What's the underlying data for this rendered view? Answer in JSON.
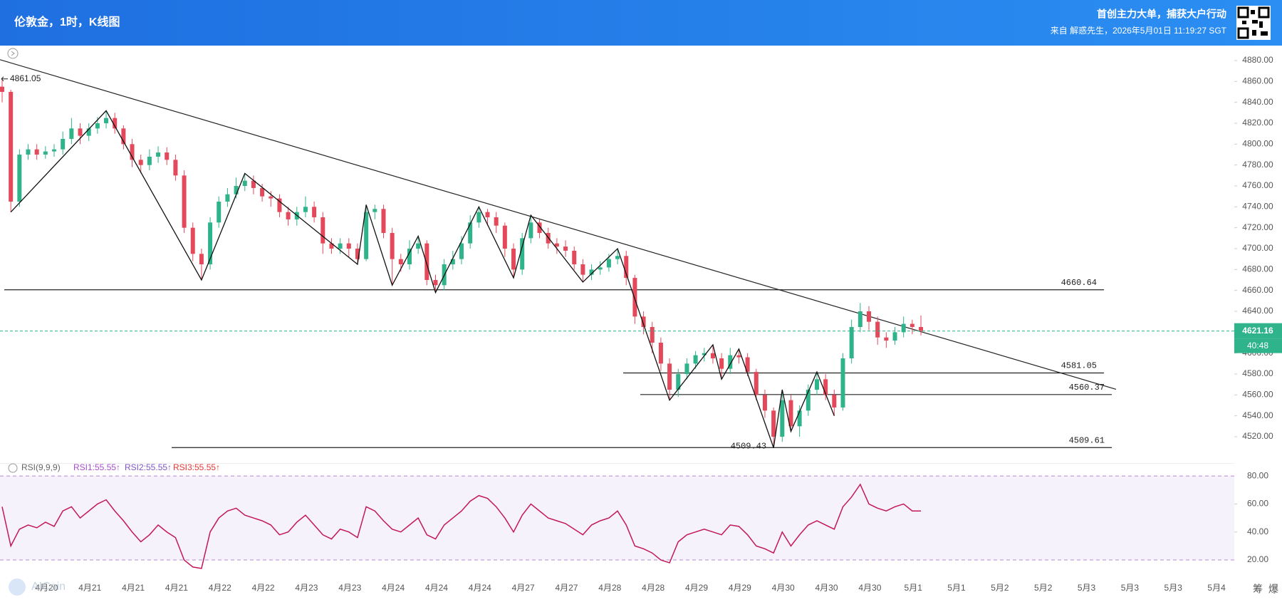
{
  "header": {
    "title": "伦敦金，1时，K线图",
    "slogan": "首创主力大单，捕获大户行动",
    "source": "来自 解惑先生，2026年5月01日 11:19:27 SGT"
  },
  "chart_data": [
    {
      "type": "candlestick",
      "open": [
        4855,
        4850,
        4745,
        4790,
        4795,
        4790,
        4793,
        4795,
        4805,
        4815,
        4808,
        4815,
        4820,
        4825,
        4815,
        4800,
        4785,
        4780,
        4788,
        4792,
        4785,
        4770,
        4720,
        4695,
        4685,
        4725,
        4745,
        4752,
        4760,
        4765,
        4758,
        4750,
        4748,
        4735,
        4728,
        4735,
        4740,
        4730,
        4705,
        4700,
        4705,
        4700,
        4690,
        4735,
        4738,
        4715,
        4690,
        4685,
        4700,
        4705,
        4670,
        4665,
        4685,
        4690,
        4705,
        4725,
        4735,
        4730,
        4722,
        4700,
        4680,
        4710,
        4725,
        4715,
        4705,
        4702,
        4698,
        4685,
        4675,
        4680,
        4682,
        4690,
        4693,
        4672,
        4635,
        4625,
        4610,
        4590,
        4565,
        4580,
        4590,
        4598,
        4600,
        4595,
        4585,
        4598,
        4596,
        4582,
        4560,
        4545,
        4520,
        4555,
        4530,
        4545,
        4565,
        4575,
        4560,
        4548,
        4595,
        4625,
        4640,
        4630,
        4615,
        4612,
        4620,
        4628,
        4625
      ],
      "high": [
        4861.05,
        4852,
        4795,
        4800,
        4800,
        4798,
        4800,
        4812,
        4825,
        4820,
        4820,
        4826,
        4832,
        4830,
        4818,
        4805,
        4790,
        4795,
        4798,
        4797,
        4790,
        4775,
        4725,
        4700,
        4730,
        4750,
        4758,
        4768,
        4772,
        4770,
        4762,
        4755,
        4752,
        4740,
        4740,
        4750,
        4745,
        4735,
        4710,
        4710,
        4710,
        4705,
        4742,
        4742,
        4742,
        4720,
        4695,
        4708,
        4712,
        4708,
        4675,
        4690,
        4698,
        4712,
        4732,
        4740,
        4738,
        4735,
        4725,
        4705,
        4715,
        4732,
        4728,
        4720,
        4710,
        4708,
        4702,
        4690,
        4685,
        4688,
        4695,
        4700,
        4698,
        4675,
        4640,
        4630,
        4615,
        4595,
        4585,
        4595,
        4602,
        4605,
        4608,
        4600,
        4605,
        4604,
        4600,
        4585,
        4565,
        4548,
        4565,
        4560,
        4550,
        4570,
        4582,
        4580,
        4565,
        4600,
        4632,
        4648,
        4645,
        4635,
        4620,
        4625,
        4635,
        4632,
        4636
      ],
      "low": [
        4840,
        4735,
        4740,
        4785,
        4785,
        4786,
        4788,
        4790,
        4800,
        4800,
        4803,
        4810,
        4815,
        4810,
        4795,
        4778,
        4772,
        4775,
        4782,
        4780,
        4765,
        4715,
        4688,
        4670,
        4680,
        4720,
        4740,
        4748,
        4755,
        4752,
        4745,
        4740,
        4730,
        4722,
        4722,
        4730,
        4725,
        4695,
        4695,
        4695,
        4692,
        4685,
        4688,
        4728,
        4710,
        4665,
        4678,
        4680,
        4695,
        4665,
        4658,
        4660,
        4680,
        4685,
        4700,
        4720,
        4722,
        4715,
        4692,
        4672,
        4675,
        4705,
        4710,
        4700,
        4695,
        4692,
        4680,
        4668,
        4670,
        4675,
        4678,
        4685,
        4665,
        4628,
        4618,
        4600,
        4583,
        4555,
        4558,
        4575,
        4585,
        4592,
        4590,
        4575,
        4580,
        4590,
        4578,
        4555,
        4538,
        4509.43,
        4515,
        4525,
        4520,
        4540,
        4560,
        4555,
        4540,
        4545,
        4590,
        4620,
        4622,
        4608,
        4605,
        4608,
        4615,
        4618,
        4617
      ],
      "close": [
        4850,
        4745,
        4790,
        4795,
        4790,
        4793,
        4795,
        4805,
        4815,
        4808,
        4815,
        4820,
        4825,
        4815,
        4800,
        4785,
        4780,
        4788,
        4792,
        4785,
        4770,
        4720,
        4695,
        4685,
        4725,
        4745,
        4752,
        4760,
        4765,
        4758,
        4750,
        4748,
        4735,
        4728,
        4735,
        4740,
        4730,
        4705,
        4700,
        4705,
        4700,
        4690,
        4735,
        4738,
        4715,
        4690,
        4685,
        4700,
        4705,
        4670,
        4665,
        4685,
        4690,
        4705,
        4725,
        4735,
        4730,
        4722,
        4700,
        4680,
        4710,
        4725,
        4715,
        4705,
        4702,
        4698,
        4685,
        4675,
        4680,
        4682,
        4690,
        4693,
        4672,
        4635,
        4625,
        4610,
        4590,
        4565,
        4580,
        4590,
        4598,
        4600,
        4595,
        4585,
        4598,
        4596,
        4582,
        4560,
        4545,
        4520,
        4555,
        4530,
        4545,
        4565,
        4575,
        4560,
        4548,
        4595,
        4625,
        4640,
        4630,
        4615,
        4612,
        4620,
        4628,
        4625,
        4621.16
      ],
      "up_color": "#2fb38a",
      "down_color": "#e4495b",
      "ylim": [
        4501.6,
        4894.3
      ],
      "yticks": [
        {
          "value": 4520,
          "label": "4520.00"
        },
        {
          "value": 4540,
          "label": "4540.00"
        },
        {
          "value": 4560,
          "label": "4560.00"
        },
        {
          "value": 4580,
          "label": "4580.00"
        },
        {
          "value": 4600,
          "label": "4600.00"
        },
        {
          "value": 4640,
          "label": "4640.00"
        },
        {
          "value": 4660,
          "label": "4660.00"
        },
        {
          "value": 4680,
          "label": "4680.00"
        },
        {
          "value": 4700,
          "label": "4700.00"
        },
        {
          "value": 4720,
          "label": "4720.00"
        },
        {
          "value": 4740,
          "label": "4740.00"
        },
        {
          "value": 4760,
          "label": "4760.00"
        },
        {
          "value": 4780,
          "label": "4780.00"
        },
        {
          "value": 4800,
          "label": "4800.00"
        },
        {
          "value": 4820,
          "label": "4820.00"
        },
        {
          "value": 4840,
          "label": "4840.00"
        },
        {
          "value": 4860,
          "label": "4860.00"
        },
        {
          "value": 4880,
          "label": "4880.00"
        }
      ],
      "levels": [
        4660.64,
        4581.05,
        4560.37,
        4509.61
      ],
      "trendline": [
        4880.8,
        4565.4
      ],
      "zigzag": {
        "x": [
          1,
          12,
          23,
          28,
          41,
          42,
          45,
          48,
          50,
          55,
          59,
          61,
          67,
          71,
          77,
          82,
          83,
          85,
          89,
          90,
          91,
          94,
          96
        ],
        "values": [
          4735,
          4832,
          4670,
          4772,
          4685,
          4742,
          4665,
          4712,
          4658,
          4740,
          4672,
          4732,
          4668,
          4700,
          4555,
          4608,
          4575,
          4604,
          4509.43,
          4565,
          4525,
          4582,
          4540
        ]
      },
      "countdown": "40:48"
    },
    {
      "type": "line",
      "title": "RSI(9,9,9)",
      "legend": [
        {
          "label": "RSI1:55.55↑",
          "color": "#a64fc8"
        },
        {
          "label": "RSI2:55.55↑",
          "color": "#7e57c2"
        },
        {
          "label": "RSI3:55.55↑",
          "color": "#e53935"
        }
      ],
      "series": [
        {
          "color": "#c2185b",
          "values": [
            58,
            30,
            42,
            45,
            43,
            47,
            44,
            55,
            58,
            50,
            55,
            60,
            63,
            55,
            48,
            40,
            33,
            38,
            45,
            40,
            36,
            20,
            15,
            14,
            40,
            50,
            55,
            57,
            52,
            50,
            48,
            45,
            38,
            40,
            47,
            52,
            45,
            38,
            35,
            42,
            40,
            36,
            58,
            55,
            48,
            42,
            40,
            45,
            50,
            38,
            35,
            45,
            50,
            55,
            62,
            66,
            64,
            58,
            50,
            40,
            52,
            60,
            55,
            50,
            48,
            46,
            42,
            38,
            45,
            48,
            50,
            55,
            45,
            30,
            28,
            25,
            20,
            18,
            33,
            38,
            40,
            42,
            40,
            38,
            45,
            44,
            38,
            30,
            28,
            25,
            40,
            30,
            38,
            45,
            48,
            45,
            42,
            58,
            65,
            74,
            60,
            57,
            55,
            58,
            60,
            55,
            55
          ]
        }
      ],
      "ylim": [
        12.9,
        89.2
      ],
      "yticks": [
        {
          "value": 80,
          "label": "80.00"
        },
        {
          "value": 60,
          "label": "60.00"
        },
        {
          "value": 40,
          "label": "40.00"
        },
        {
          "value": 20,
          "label": "20.00"
        }
      ],
      "x_labels": [
        "4月20",
        "4月21",
        "4月21",
        "4月21",
        "4月22",
        "4月22",
        "4月23",
        "4月23",
        "4月24",
        "4月24",
        "4月24",
        "4月27",
        "4月27",
        "4月28",
        "4月28",
        "4月29",
        "4月29",
        "4月30",
        "4月30",
        "4月30",
        "5月1",
        "5月1",
        "5月2",
        "5月2",
        "5月3",
        "5月3",
        "5月3",
        "5月4"
      ]
    }
  ],
  "watermark": "AICoin",
  "corner_icons": [
    "筹",
    "爆"
  ]
}
